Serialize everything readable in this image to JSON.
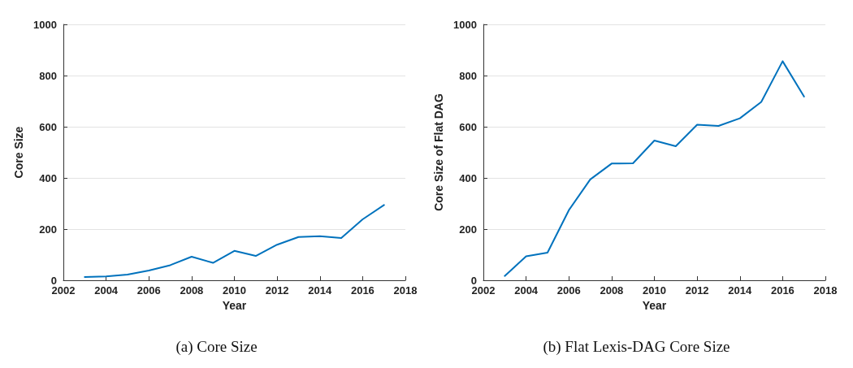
{
  "chart_data": [
    {
      "type": "line",
      "xlabel": "Year",
      "ylabel": "Core Size",
      "annotations": [
        "(a) Core Size"
      ],
      "x": [
        2003,
        2004,
        2005,
        2006,
        2007,
        2008,
        2009,
        2010,
        2011,
        2012,
        2013,
        2014,
        2015,
        2016,
        2017
      ],
      "series": [
        {
          "color": "#0072bd",
          "values": [
            13,
            15,
            22,
            38,
            59,
            92,
            68,
            115,
            95,
            139,
            169,
            172,
            165,
            238,
            294
          ]
        }
      ],
      "xlim": [
        2002,
        2018
      ],
      "xticks": [
        2002,
        2004,
        2006,
        2008,
        2010,
        2012,
        2014,
        2016,
        2018
      ],
      "ylim": [
        0,
        1000
      ],
      "yticks": [
        0,
        200,
        400,
        600,
        800,
        1000
      ],
      "grid": "y",
      "marker": "none",
      "line_style": "solid"
    },
    {
      "type": "line",
      "xlabel": "Year",
      "ylabel": "Core Size of Flat DAG",
      "annotations": [
        "(b) Flat Lexis-DAG Core Size"
      ],
      "x": [
        2003,
        2004,
        2005,
        2006,
        2007,
        2008,
        2009,
        2010,
        2011,
        2012,
        2013,
        2014,
        2015,
        2016,
        2017
      ],
      "series": [
        {
          "color": "#0072bd",
          "values": [
            17,
            94,
            108,
            274,
            394,
            456,
            457,
            546,
            524,
            608,
            603,
            633,
            697,
            856,
            718
          ]
        }
      ],
      "xlim": [
        2002,
        2018
      ],
      "xticks": [
        2002,
        2004,
        2006,
        2008,
        2010,
        2012,
        2014,
        2016,
        2018
      ],
      "ylim": [
        0,
        1000
      ],
      "yticks": [
        0,
        200,
        400,
        600,
        800,
        1000
      ],
      "grid": "y",
      "marker": "none",
      "line_style": "solid"
    }
  ]
}
